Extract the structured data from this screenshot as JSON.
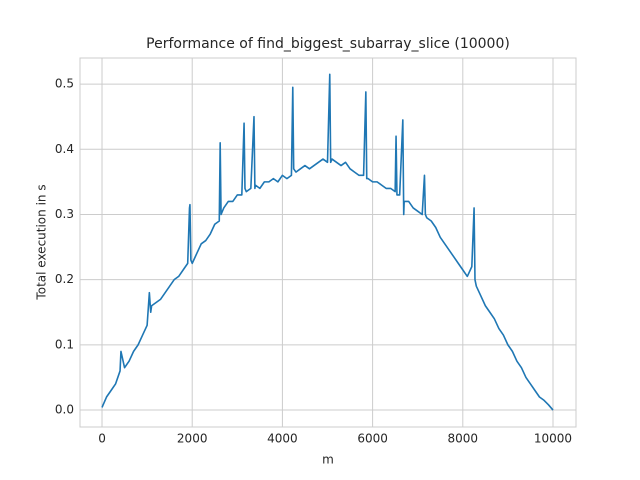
{
  "chart_data": {
    "type": "line",
    "title": "Performance of find_biggest_subarray_slice (10000)",
    "x_label": "m",
    "y_label": "Total execution in s",
    "xlim": [
      -488,
      10510
    ],
    "ylim": [
      -0.026,
      0.54
    ],
    "xticks": [
      0,
      2000,
      4000,
      6000,
      8000,
      10000
    ],
    "yticks": [
      {
        "value": 0,
        "label": "0.0"
      },
      0.1,
      0.2,
      0.3,
      0.4,
      0.5
    ],
    "grid": true,
    "series": [
      {
        "color": "#1f77b4",
        "x": [
          0,
          100,
          200,
          300,
          400,
          420,
          500,
          600,
          700,
          800,
          900,
          1000,
          1050,
          1080,
          1100,
          1200,
          1300,
          1400,
          1500,
          1600,
          1700,
          1800,
          1900,
          1940,
          1950,
          1970,
          2000,
          2100,
          2200,
          2300,
          2400,
          2500,
          2600,
          2620,
          2640,
          2700,
          2800,
          2900,
          3000,
          3100,
          3150,
          3170,
          3200,
          3300,
          3370,
          3390,
          3400,
          3500,
          3600,
          3700,
          3800,
          3900,
          4000,
          4100,
          4200,
          4230,
          4250,
          4300,
          4400,
          4500,
          4600,
          4700,
          4800,
          4900,
          5000,
          5050,
          5070,
          5100,
          5200,
          5300,
          5400,
          5500,
          5600,
          5700,
          5800,
          5850,
          5870,
          5900,
          6000,
          6100,
          6200,
          6300,
          6400,
          6500,
          6520,
          6540,
          6600,
          6670,
          6690,
          6700,
          6800,
          6900,
          7000,
          7100,
          7150,
          7170,
          7200,
          7300,
          7400,
          7500,
          7600,
          7700,
          7800,
          7900,
          8000,
          8100,
          8200,
          8250,
          8270,
          8300,
          8400,
          8500,
          8600,
          8700,
          8800,
          8900,
          9000,
          9100,
          9200,
          9300,
          9400,
          9500,
          9600,
          9700,
          9800,
          9900,
          10000
        ],
        "values": [
          0.004,
          0.02,
          0.03,
          0.04,
          0.06,
          0.09,
          0.065,
          0.075,
          0.09,
          0.1,
          0.115,
          0.13,
          0.18,
          0.15,
          0.16,
          0.165,
          0.17,
          0.18,
          0.19,
          0.2,
          0.205,
          0.215,
          0.225,
          0.31,
          0.315,
          0.23,
          0.225,
          0.24,
          0.255,
          0.26,
          0.27,
          0.285,
          0.29,
          0.41,
          0.3,
          0.31,
          0.32,
          0.32,
          0.33,
          0.33,
          0.44,
          0.34,
          0.335,
          0.34,
          0.45,
          0.34,
          0.345,
          0.34,
          0.35,
          0.35,
          0.355,
          0.35,
          0.36,
          0.355,
          0.36,
          0.495,
          0.37,
          0.365,
          0.37,
          0.375,
          0.37,
          0.375,
          0.38,
          0.385,
          0.38,
          0.515,
          0.38,
          0.385,
          0.38,
          0.375,
          0.38,
          0.37,
          0.365,
          0.36,
          0.36,
          0.488,
          0.355,
          0.355,
          0.35,
          0.35,
          0.345,
          0.34,
          0.34,
          0.335,
          0.42,
          0.33,
          0.33,
          0.445,
          0.3,
          0.32,
          0.32,
          0.31,
          0.305,
          0.3,
          0.36,
          0.3,
          0.295,
          0.29,
          0.28,
          0.265,
          0.255,
          0.245,
          0.235,
          0.225,
          0.215,
          0.205,
          0.22,
          0.31,
          0.2,
          0.19,
          0.175,
          0.16,
          0.15,
          0.14,
          0.125,
          0.115,
          0.1,
          0.09,
          0.075,
          0.065,
          0.05,
          0.04,
          0.03,
          0.02,
          0.015,
          0.008,
          0.0
        ]
      }
    ]
  }
}
